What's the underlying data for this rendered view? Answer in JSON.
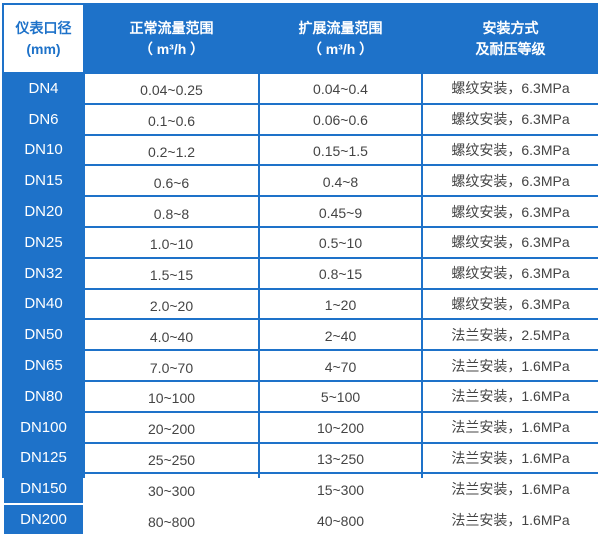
{
  "header": {
    "col1": [
      "仪表口径",
      "(mm)"
    ],
    "col2": [
      "正常流量范围",
      "（ m³/h ）"
    ],
    "col3": [
      "扩展流量范围",
      "（ m³/h ）"
    ],
    "col4": [
      "安装方式",
      "及耐压等级"
    ]
  },
  "rows": [
    [
      "DN4",
      "0.04~0.25",
      "0.04~0.4",
      "螺纹安装，6.3MPa"
    ],
    [
      "DN6",
      "0.1~0.6",
      "0.06~0.6",
      "螺纹安装，6.3MPa"
    ],
    [
      "DN10",
      "0.2~1.2",
      "0.15~1.5",
      "螺纹安装，6.3MPa"
    ],
    [
      "DN15",
      "0.6~6",
      "0.4~8",
      "螺纹安装，6.3MPa"
    ],
    [
      "DN20",
      "0.8~8",
      "0.45~9",
      "螺纹安装，6.3MPa"
    ],
    [
      "DN25",
      "1.0~10",
      "0.5~10",
      "螺纹安装，6.3MPa"
    ],
    [
      "DN32",
      "1.5~15",
      "0.8~15",
      "螺纹安装，6.3MPa"
    ],
    [
      "DN40",
      "2.0~20",
      "1~20",
      "螺纹安装，6.3MPa"
    ],
    [
      "DN50",
      "4.0~40",
      "2~40",
      "法兰安装，2.5MPa"
    ],
    [
      "DN65",
      "7.0~70",
      "4~70",
      "法兰安装，1.6MPa"
    ],
    [
      "DN80",
      "10~100",
      "5~100",
      "法兰安装，1.6MPa"
    ],
    [
      "DN100",
      "20~200",
      "10~200",
      "法兰安装，1.6MPa"
    ],
    [
      "DN125",
      "25~250",
      "13~250",
      "法兰安装，1.6MPa"
    ],
    [
      "DN150",
      "30~300",
      "15~300",
      "法兰安装，1.6MPa"
    ],
    [
      "DN200",
      "80~800",
      "40~800",
      "法兰安装，1.6MPa"
    ]
  ],
  "colors": {
    "border": "#1e72c9",
    "text": "#444444",
    "header_text": "#ffffff"
  }
}
